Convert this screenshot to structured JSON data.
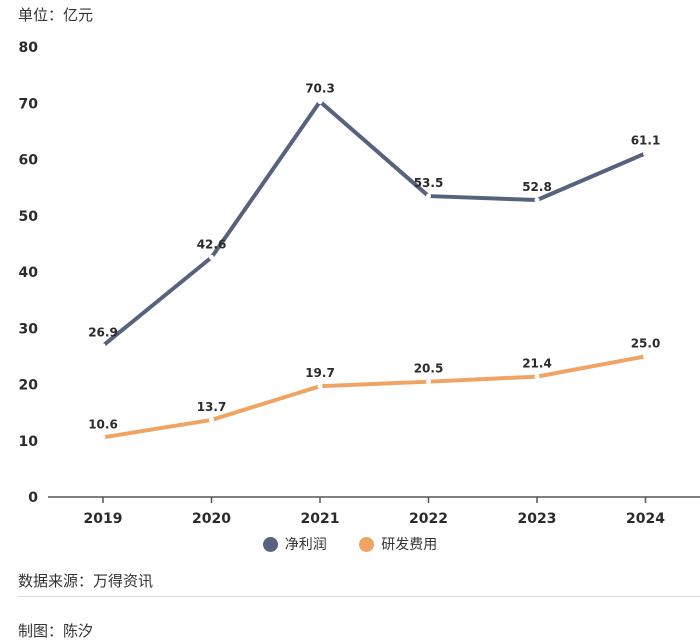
{
  "unit_label": "单位：亿元",
  "source": "数据来源：万得资讯",
  "credit": "制图：陈汐",
  "chart_data": {
    "type": "line",
    "categories": [
      "2019",
      "2020",
      "2021",
      "2022",
      "2023",
      "2024"
    ],
    "y_ticks": [
      "0",
      "10",
      "20",
      "30",
      "40",
      "50",
      "60",
      "70",
      "80"
    ],
    "ylim": [
      0,
      80
    ],
    "grid": false,
    "legend_position": "bottom",
    "series": [
      {
        "name": "净利润",
        "color": "#56627e",
        "values": [
          26.9,
          42.6,
          70.3,
          53.5,
          52.8,
          61.1
        ],
        "labels": [
          "26.9",
          "42.6",
          "70.3",
          "53.5",
          "52.8",
          "61.1"
        ]
      },
      {
        "name": "研发费用",
        "color": "#f0a463",
        "values": [
          10.6,
          13.7,
          19.7,
          20.5,
          21.4,
          25.0
        ],
        "labels": [
          "10.6",
          "13.7",
          "19.7",
          "20.5",
          "21.4",
          "25.0"
        ]
      }
    ]
  }
}
